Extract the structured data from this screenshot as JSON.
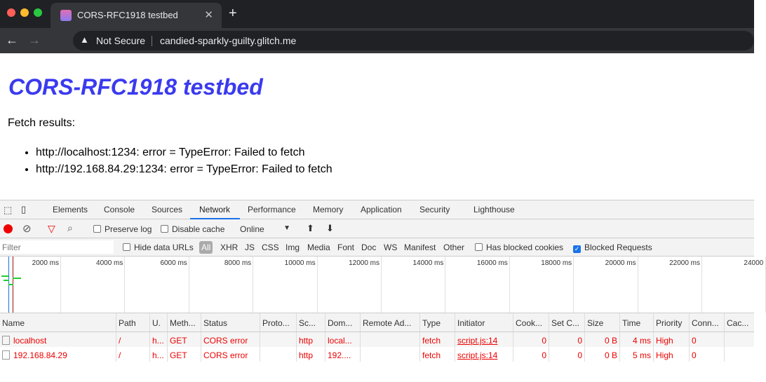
{
  "browser": {
    "tab_title": "CORS-RFC1918 testbed",
    "security_label": "Not Secure",
    "url": "candied-sparkly-guilty.glitch.me"
  },
  "page": {
    "title": "CORS-RFC1918 testbed",
    "intro": "Fetch results:",
    "results": [
      "http://localhost:1234: error = TypeError: Failed to fetch",
      "http://192.168.84.29:1234: error = TypeError: Failed to fetch"
    ]
  },
  "devtools": {
    "tabs": [
      "Elements",
      "Console",
      "Sources",
      "Network",
      "Performance",
      "Memory",
      "Application",
      "Security",
      "Lighthouse"
    ],
    "active_tab": "Network",
    "toolbar": {
      "preserve_log": "Preserve log",
      "disable_cache": "Disable cache",
      "throttling": "Online"
    },
    "filter": {
      "placeholder": "Filter",
      "hide_data_urls": "Hide data URLs",
      "types": [
        "All",
        "XHR",
        "JS",
        "CSS",
        "Img",
        "Media",
        "Font",
        "Doc",
        "WS",
        "Manifest",
        "Other"
      ],
      "has_blocked_cookies": "Has blocked cookies",
      "blocked_requests": "Blocked Requests",
      "blocked_requests_checked": true
    },
    "timeline_ticks": [
      "2000 ms",
      "4000 ms",
      "6000 ms",
      "8000 ms",
      "10000 ms",
      "12000 ms",
      "14000 ms",
      "16000 ms",
      "18000 ms",
      "20000 ms",
      "22000 ms",
      "24000"
    ],
    "columns": [
      "Name",
      "Path",
      "U.",
      "Meth...",
      "Status",
      "Proto...",
      "Sc...",
      "Dom...",
      "Remote Ad...",
      "Type",
      "Initiator",
      "Cook...",
      "Set C...",
      "Size",
      "Time",
      "Priority",
      "Conn...",
      "Cac..."
    ],
    "rows": [
      [
        "localhost",
        "/",
        "h...",
        "GET",
        "CORS error",
        "",
        "http",
        "local...",
        "",
        "fetch",
        "script.js:14",
        "0",
        "0",
        "0 B",
        "4 ms",
        "High",
        "0",
        ""
      ],
      [
        "192.168.84.29",
        "/",
        "h...",
        "GET",
        "CORS error",
        "",
        "http",
        "192....",
        "",
        "fetch",
        "script.js:14",
        "0",
        "0",
        "0 B",
        "5 ms",
        "High",
        "0",
        ""
      ]
    ],
    "error_color": "#e00000"
  }
}
